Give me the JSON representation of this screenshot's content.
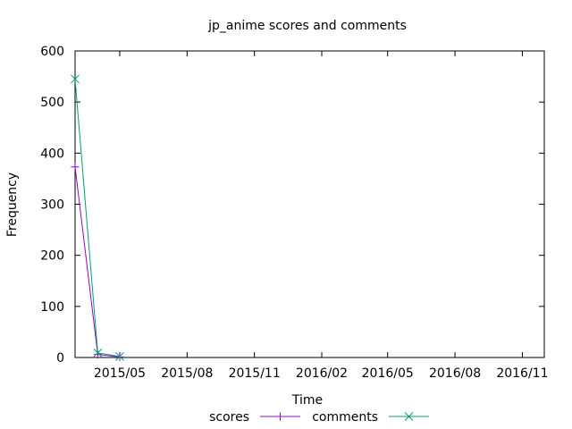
{
  "chart_data": {
    "type": "line",
    "title": "jp_anime scores and comments",
    "xlabel": "Time",
    "ylabel": "Frequency",
    "ylim": [
      0,
      600
    ],
    "xlim": [
      "2015-03-01",
      "2016-12-01"
    ],
    "yticks": [
      "0",
      "100",
      "200",
      "300",
      "400",
      "500",
      "600"
    ],
    "xticks": [
      {
        "date": "2015-05-01",
        "label": "2015/05"
      },
      {
        "date": "2015-08-01",
        "label": "2015/08"
      },
      {
        "date": "2015-11-01",
        "label": "2015/11"
      },
      {
        "date": "2016-02-01",
        "label": "2016/02"
      },
      {
        "date": "2016-05-01",
        "label": "2016/05"
      },
      {
        "date": "2016-08-01",
        "label": "2016/08"
      },
      {
        "date": "2016-11-01",
        "label": "2016/11"
      }
    ],
    "grid": false,
    "legend_position": "bottom",
    "series": [
      {
        "name": "scores",
        "color": "#9400d3",
        "marker": "plus",
        "points": [
          {
            "x": "2015-03-01",
            "y": 373
          },
          {
            "x": "2015-04-01",
            "y": 6
          },
          {
            "x": "2015-05-01",
            "y": 1
          }
        ]
      },
      {
        "name": "comments",
        "color": "#009e73",
        "marker": "cross",
        "points": [
          {
            "x": "2015-03-01",
            "y": 545
          },
          {
            "x": "2015-04-01",
            "y": 9
          },
          {
            "x": "2015-05-01",
            "y": 2
          }
        ]
      }
    ]
  }
}
